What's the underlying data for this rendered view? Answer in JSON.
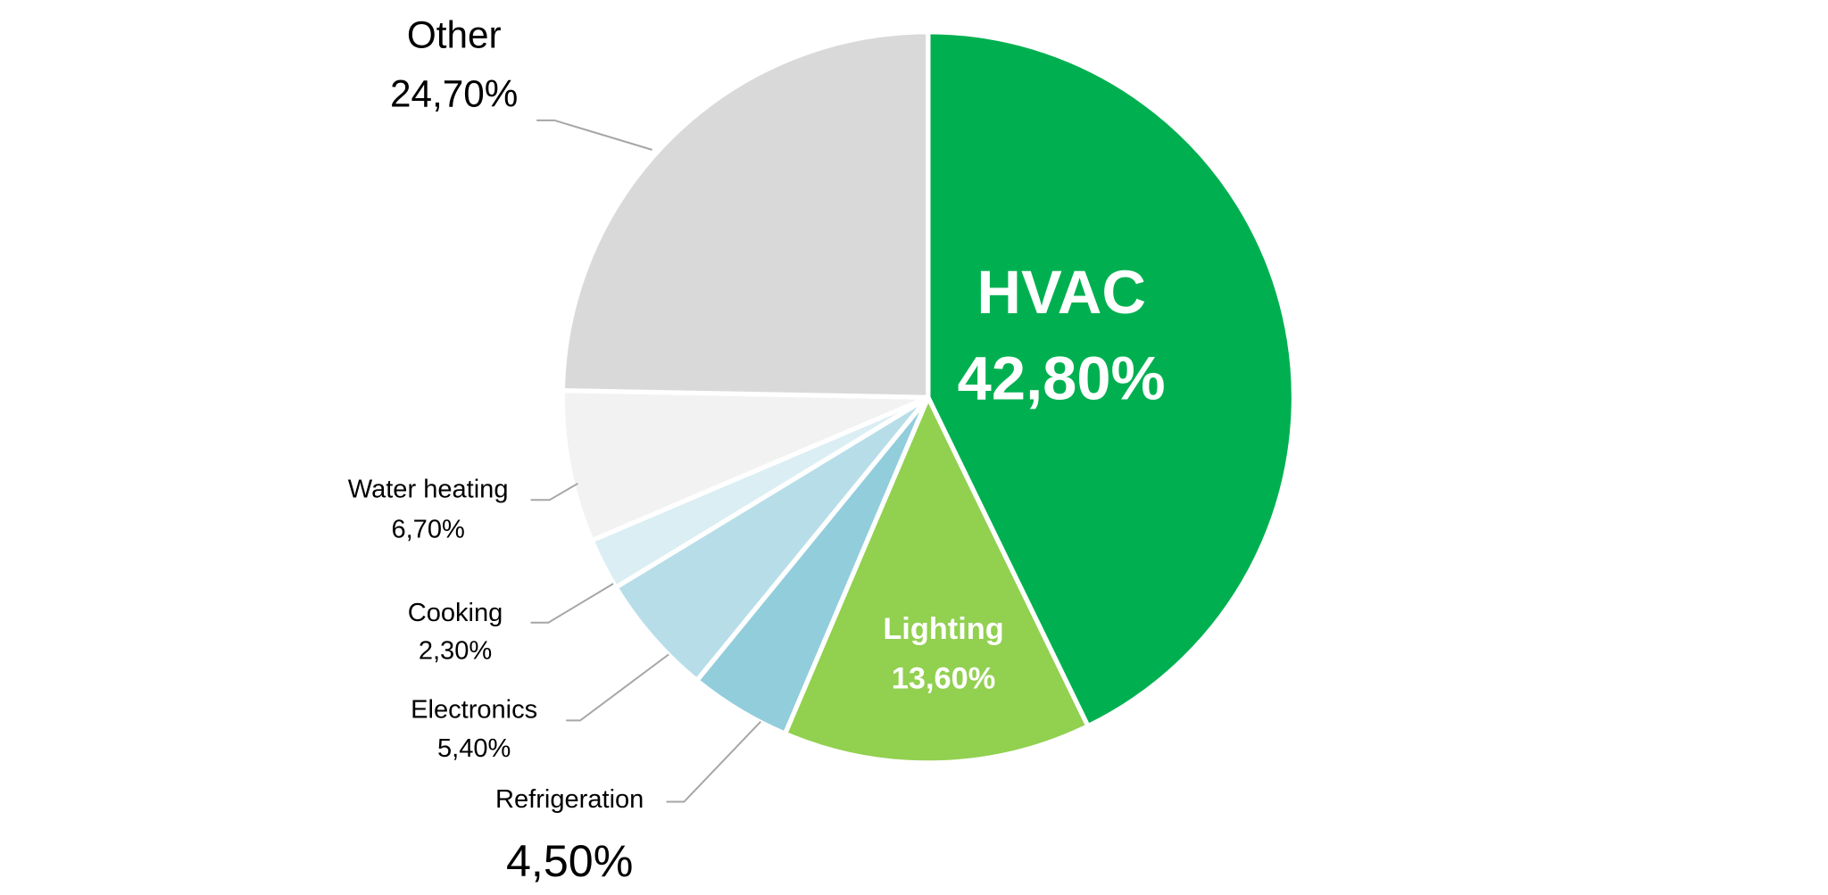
{
  "chart_data": {
    "type": "pie",
    "categories": [
      "HVAC",
      "Lighting",
      "Refrigeration",
      "Electronics",
      "Cooking",
      "Water heating",
      "Other"
    ],
    "values": [
      42.8,
      13.6,
      4.5,
      5.4,
      2.3,
      6.7,
      24.7
    ],
    "value_labels": [
      "42,80%",
      "13,60%",
      "4,50%",
      "5,40%",
      "2,30%",
      "6,70%",
      "24,70%"
    ],
    "colors": [
      "#00b050",
      "#92d050",
      "#92cddc",
      "#b7dee8",
      "#daeef3",
      "#f2f2f2",
      "#d9d9d9"
    ]
  }
}
